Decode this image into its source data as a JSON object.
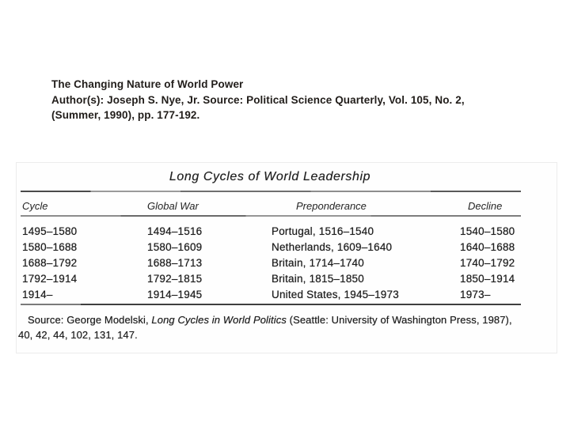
{
  "citation": {
    "line1": "The Changing Nature of World Power",
    "line2": "Author(s): Joseph S. Nye, Jr. Source: Political Science Quarterly, Vol. 105, No. 2,",
    "line3": "(Summer, 1990), pp. 177-192."
  },
  "scan": {
    "title": "Long Cycles of World Leadership",
    "columns": [
      "Cycle",
      "Global War",
      "Preponderance",
      "Decline"
    ],
    "rows": [
      [
        "1495–1580",
        "1494–1516",
        "Portugal, 1516–1540",
        "1540–1580"
      ],
      [
        "1580–1688",
        "1580–1609",
        "Netherlands, 1609–1640",
        "1640–1688"
      ],
      [
        "1688–1792",
        "1688–1713",
        "Britain, 1714–1740",
        "1740–1792"
      ],
      [
        "1792–1914",
        "1792–1815",
        "Britain, 1815–1850",
        "1850–1914"
      ],
      [
        "1914–",
        "1914–1945",
        "United States, 1945–1973",
        "1973–"
      ]
    ],
    "source": {
      "prefix": "Source: George Modelski, ",
      "italic_title": "Long Cycles in World Politics",
      "suffix": " (Seattle: University of Washington Press, 1987),",
      "line2": "40, 42, 44, 102, 131, 147."
    }
  },
  "colors": {
    "page_background": "#ffffff",
    "text": "#1c1c1c"
  }
}
